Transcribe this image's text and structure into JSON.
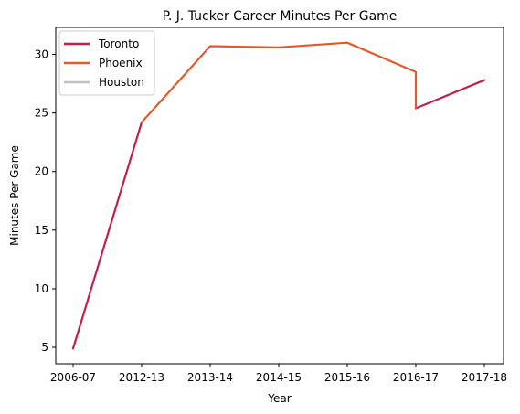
{
  "chart_data": {
    "type": "line",
    "title": "P. J. Tucker Career Minutes Per Game",
    "xlabel": "Year",
    "ylabel": "Minutes Per Game",
    "categories": [
      "2006-07",
      "2012-13",
      "2013-14",
      "2014-15",
      "2015-16",
      "2016-17",
      "2017-18"
    ],
    "ylim": [
      3.6,
      32.3
    ],
    "yticks": [
      5,
      10,
      15,
      20,
      25,
      30
    ],
    "grid": false,
    "legend_position": "top-left",
    "series": [
      {
        "name": "Toronto",
        "color": "#c41e49",
        "points": [
          {
            "x": "2006-07",
            "y": 4.9
          },
          {
            "x": "2012-13",
            "y": 24.2
          },
          {
            "break": true
          },
          {
            "x": "2016-17",
            "y": 25.4
          },
          {
            "x": "2017-18",
            "y": 27.8
          }
        ]
      },
      {
        "name": "Phoenix",
        "color": "#e05b2b",
        "points": [
          {
            "x": "2012-13",
            "y": 24.2
          },
          {
            "x": "2013-14",
            "y": 30.7
          },
          {
            "x": "2014-15",
            "y": 30.6
          },
          {
            "x": "2015-16",
            "y": 31.0
          },
          {
            "x": "2016-17",
            "y": 28.5
          },
          {
            "x": "2016-17",
            "y": 25.4
          }
        ]
      },
      {
        "name": "Houston",
        "color": "#c0c0c0",
        "points": []
      }
    ]
  }
}
